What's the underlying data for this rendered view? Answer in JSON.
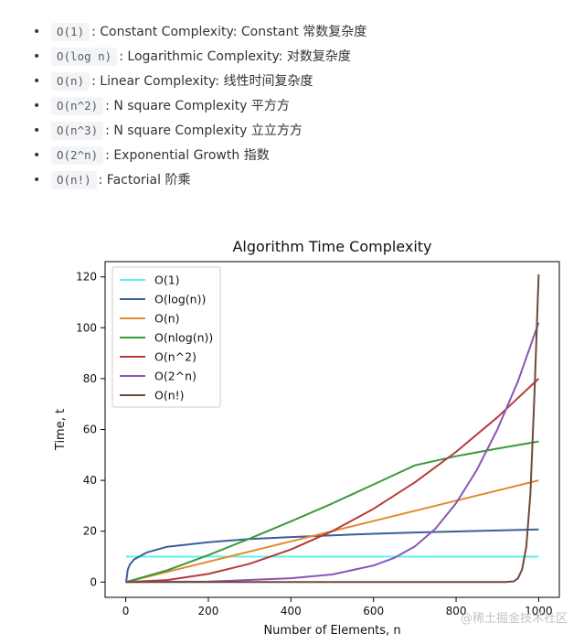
{
  "list_items": [
    {
      "code": "O(1)",
      "text": ": Constant Complexity: Constant 常数复杂度"
    },
    {
      "code": "O(log n)",
      "text": ": Logarithmic Complexity: 对数复杂度"
    },
    {
      "code": "O(n)",
      "text": ": Linear Complexity: 线性时间复杂度"
    },
    {
      "code": "O(n^2)",
      "text": ": N square Complexity 平方方"
    },
    {
      "code": "O(n^3)",
      "text": ": N square Complexity 立立方方"
    },
    {
      "code": "O(2^n)",
      "text": ": Exponential Growth 指数"
    },
    {
      "code": "O(n!)",
      "text": ": Factorial 阶乘"
    }
  ],
  "watermark": "@稀土掘金技术社区",
  "chart_data": {
    "type": "line",
    "title": "Algorithm Time Complexity",
    "xlabel": "Number of Elements, n",
    "ylabel": "Time, t",
    "xlim": [
      -50,
      1050
    ],
    "ylim": [
      -6,
      126
    ],
    "xticks": [
      0,
      200,
      400,
      600,
      800,
      1000
    ],
    "yticks": [
      0,
      20,
      40,
      60,
      80,
      100,
      120
    ],
    "grid": false,
    "legend": "top-left",
    "series": [
      {
        "name": "O(1)",
        "color": "#5ef0f0",
        "x": [
          1,
          1000
        ],
        "y": [
          10,
          10
        ]
      },
      {
        "name": "O(log(n))",
        "color": "#3a5f9a",
        "x": [
          1,
          5,
          10,
          20,
          50,
          100,
          200,
          300,
          400,
          500,
          600,
          700,
          800,
          900,
          1000
        ],
        "y": [
          0,
          4.9,
          6.9,
          8.9,
          11.6,
          13.9,
          15.7,
          16.9,
          17.7,
          18.4,
          19.0,
          19.5,
          19.9,
          20.3,
          20.7
        ]
      },
      {
        "name": "O(n)",
        "color": "#e08a2c",
        "x": [
          0,
          1000
        ],
        "y": [
          0,
          40
        ]
      },
      {
        "name": "O(nlog(n))",
        "color": "#3a9a3a",
        "x": [
          0,
          100,
          200,
          300,
          400,
          500,
          600,
          700,
          800,
          900,
          1000
        ],
        "y": [
          0,
          4.6,
          10.6,
          17.1,
          23.9,
          30.9,
          38.4,
          45.9,
          49.5,
          52.5,
          55.3
        ]
      },
      {
        "name": "O(n^2)",
        "color": "#b83a3a",
        "x": [
          0,
          100,
          200,
          300,
          400,
          500,
          600,
          700,
          800,
          900,
          1000
        ],
        "y": [
          0,
          0.8,
          3.2,
          7.2,
          12.8,
          20,
          28.8,
          39.2,
          51.2,
          64.8,
          80
        ]
      },
      {
        "name": "O(2^n)",
        "color": "#8a55b5",
        "x": [
          0,
          200,
          400,
          500,
          600,
          650,
          700,
          750,
          800,
          850,
          900,
          950,
          1000
        ],
        "y": [
          0,
          0.2,
          1.5,
          3,
          6.5,
          9.5,
          14,
          21,
          31,
          44,
          60,
          79,
          102
        ]
      },
      {
        "name": "O(n!)",
        "color": "#6e4a3c",
        "x": [
          0,
          900,
          920,
          940,
          950,
          960,
          970,
          980,
          990,
          1000
        ],
        "y": [
          0,
          0,
          0,
          0.3,
          1.5,
          5,
          14,
          35,
          75,
          121
        ]
      }
    ]
  }
}
